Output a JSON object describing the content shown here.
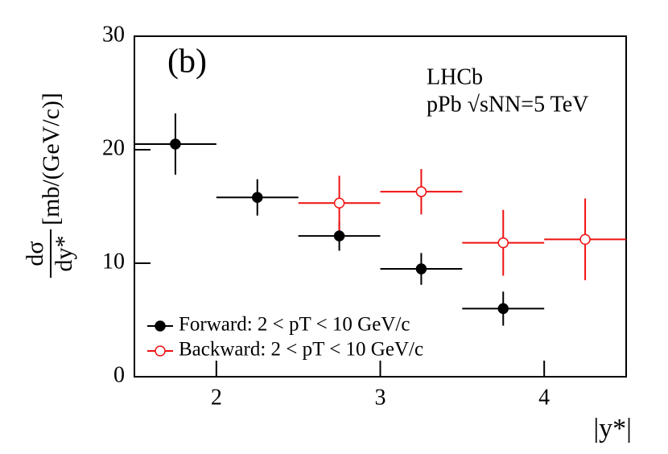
{
  "chart_data": {
    "type": "scatter",
    "annotations": [
      "(b)",
      "LHCb",
      "pPb √sNN=5 TeV"
    ],
    "y_label": {
      "numerator": "dσ",
      "denominator": "dy*",
      "unit": "[mb/(GeV/c)]"
    },
    "x_label": "|y*|",
    "xlim": [
      1.5,
      4.5
    ],
    "xticks": [
      2,
      3,
      4
    ],
    "ylim": [
      0,
      30
    ],
    "yticks": [
      0,
      10,
      20,
      30
    ],
    "legend": "bottom-left",
    "series": [
      {
        "name": "Forward: 2 < pT < 10 GeV/c",
        "color": "#000000",
        "marker": "filled",
        "x": [
          1.75,
          2.25,
          2.75,
          3.25,
          3.75
        ],
        "values": [
          20.5,
          15.8,
          12.4,
          9.5,
          6.0
        ],
        "yerr": [
          2.7,
          1.6,
          1.3,
          1.4,
          1.5
        ],
        "xerr": [
          0.25,
          0.25,
          0.25,
          0.25,
          0.25
        ]
      },
      {
        "name": "Backward: 2 < pT < 10 GeV/c",
        "color": "#ee1111",
        "marker": "open",
        "x": [
          2.75,
          3.25,
          3.75,
          4.25
        ],
        "values": [
          15.3,
          16.3,
          11.8,
          12.1
        ],
        "yerr": [
          2.4,
          2.0,
          2.9,
          3.6
        ],
        "xerr": [
          0.25,
          0.25,
          0.25,
          0.25
        ]
      }
    ]
  }
}
